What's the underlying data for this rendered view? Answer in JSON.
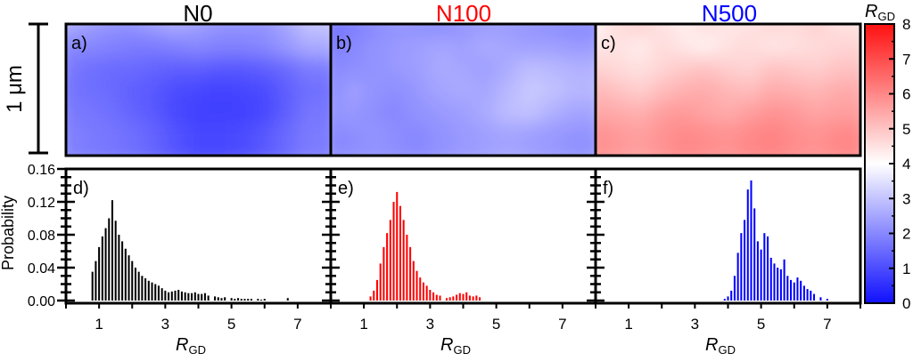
{
  "figure": {
    "scale_label": "1 μm",
    "colorbar_label": "R",
    "colorbar_sub": "GD",
    "colorbar_ticks": [
      "0",
      "1",
      "2",
      "3",
      "4",
      "5",
      "6",
      "7",
      "8"
    ],
    "colors": {
      "low": "#1010ff",
      "mid": "#ffffff",
      "high": "#ff1010"
    }
  },
  "chart_data": [
    {
      "type": "heatmap",
      "id": "map-a",
      "panel": "a)",
      "title": "N0",
      "title_color": "#000000",
      "value_range": [
        0,
        8
      ],
      "values": [
        [
          2.6,
          2.4,
          2.2,
          2.2,
          2.4,
          2.6,
          2.4,
          2.2,
          2.2,
          2.2,
          2.5,
          3.0
        ],
        [
          2.0,
          2.0,
          1.9,
          1.8,
          1.8,
          1.9,
          2.0,
          1.9,
          1.9,
          2.0,
          2.3,
          2.6
        ],
        [
          1.8,
          1.6,
          1.5,
          1.5,
          1.4,
          1.3,
          1.3,
          1.2,
          1.2,
          1.3,
          1.5,
          1.8
        ],
        [
          1.7,
          1.6,
          1.5,
          1.3,
          1.2,
          1.0,
          0.9,
          0.8,
          0.9,
          1.0,
          1.3,
          1.6
        ],
        [
          1.8,
          1.7,
          1.6,
          1.4,
          1.2,
          0.9,
          0.8,
          0.8,
          0.8,
          0.9,
          1.3,
          1.7
        ],
        [
          1.9,
          1.8,
          1.7,
          1.6,
          1.4,
          1.1,
          0.9,
          0.9,
          1.0,
          1.2,
          1.5,
          1.8
        ]
      ]
    },
    {
      "type": "heatmap",
      "id": "map-b",
      "panel": "b)",
      "title": "N100",
      "title_color": "#ff0000",
      "value_range": [
        0,
        8
      ],
      "values": [
        [
          1.6,
          1.8,
          2.0,
          2.2,
          2.1,
          2.0,
          2.2,
          2.3,
          2.3,
          2.2,
          2.1,
          2.0
        ],
        [
          1.8,
          2.0,
          2.2,
          2.3,
          2.4,
          2.5,
          2.4,
          2.6,
          2.5,
          2.4,
          2.4,
          2.3
        ],
        [
          2.0,
          2.1,
          2.2,
          2.3,
          2.4,
          2.6,
          2.5,
          2.4,
          2.6,
          2.9,
          2.8,
          2.7
        ],
        [
          2.1,
          2.4,
          2.2,
          2.1,
          2.3,
          2.5,
          2.6,
          2.5,
          2.8,
          3.1,
          3.0,
          2.8
        ],
        [
          2.2,
          2.3,
          2.1,
          2.0,
          2.2,
          2.3,
          2.4,
          2.6,
          2.9,
          3.0,
          2.7,
          2.5
        ],
        [
          2.0,
          2.1,
          2.2,
          2.1,
          2.0,
          2.2,
          2.3,
          2.4,
          2.5,
          2.4,
          2.3,
          2.2
        ]
      ]
    },
    {
      "type": "heatmap",
      "id": "map-c",
      "panel": "c)",
      "title": "N500",
      "title_color": "#0000ff",
      "value_range": [
        0,
        8
      ],
      "values": [
        [
          4.2,
          4.6,
          4.8,
          4.5,
          4.3,
          4.6,
          4.4,
          4.5,
          4.7,
          4.6,
          4.8,
          4.5
        ],
        [
          4.4,
          4.5,
          4.3,
          4.6,
          4.4,
          4.2,
          4.5,
          4.6,
          4.4,
          4.5,
          4.6,
          4.7
        ],
        [
          4.8,
          4.6,
          4.5,
          4.7,
          4.9,
          5.0,
          4.8,
          4.7,
          5.0,
          4.9,
          4.8,
          5.0
        ],
        [
          5.2,
          5.0,
          4.8,
          5.1,
          5.3,
          5.4,
          5.2,
          5.1,
          5.4,
          5.3,
          5.2,
          5.4
        ],
        [
          5.5,
          5.4,
          5.3,
          5.6,
          5.7,
          5.5,
          5.4,
          5.6,
          5.8,
          5.7,
          5.5,
          5.6
        ],
        [
          5.9,
          5.7,
          5.6,
          5.8,
          6.0,
          5.9,
          5.8,
          6.0,
          6.1,
          5.9,
          5.8,
          6.0
        ]
      ]
    },
    {
      "type": "bar",
      "id": "hist-d",
      "panel": "d)",
      "color": "#000000",
      "xlabel": "R",
      "xlabel_sub": "GD",
      "ylabel": "Probability",
      "xlim": [
        0,
        8
      ],
      "ylim": [
        0,
        0.16
      ],
      "xticks": [
        "1",
        "3",
        "5",
        "7"
      ],
      "yticks": [
        "0.00",
        "0.04",
        "0.08",
        "0.12",
        "0.16"
      ],
      "x": [
        0.8,
        0.9,
        1.0,
        1.1,
        1.2,
        1.3,
        1.4,
        1.5,
        1.6,
        1.7,
        1.8,
        1.9,
        2.0,
        2.1,
        2.2,
        2.3,
        2.4,
        2.5,
        2.6,
        2.7,
        2.8,
        2.9,
        3.0,
        3.1,
        3.2,
        3.3,
        3.4,
        3.5,
        3.6,
        3.7,
        3.8,
        3.9,
        4.0,
        4.1,
        4.2,
        4.3,
        4.5,
        4.6,
        4.7,
        4.8,
        5.0,
        5.1,
        5.2,
        5.3,
        5.4,
        5.5,
        5.6,
        5.8,
        5.9,
        6.0,
        6.7
      ],
      "values": [
        0.035,
        0.048,
        0.065,
        0.078,
        0.088,
        0.1,
        0.122,
        0.097,
        0.08,
        0.072,
        0.063,
        0.055,
        0.048,
        0.04,
        0.035,
        0.03,
        0.027,
        0.024,
        0.022,
        0.02,
        0.018,
        0.015,
        0.012,
        0.01,
        0.011,
        0.012,
        0.013,
        0.011,
        0.01,
        0.009,
        0.009,
        0.01,
        0.008,
        0.008,
        0.009,
        0.006,
        0.005,
        0.004,
        0.003,
        0.004,
        0.003,
        0.002,
        0.003,
        0.002,
        0.002,
        0.002,
        0.002,
        0.002,
        0.001,
        0.002,
        0.003
      ]
    },
    {
      "type": "bar",
      "id": "hist-e",
      "panel": "e)",
      "color": "#ff0000",
      "xlabel": "R",
      "xlabel_sub": "GD",
      "xlim": [
        0,
        8
      ],
      "ylim": [
        0,
        0.16
      ],
      "xticks": [
        "1",
        "3",
        "5",
        "7"
      ],
      "x": [
        1.2,
        1.3,
        1.4,
        1.5,
        1.6,
        1.7,
        1.8,
        1.9,
        2.0,
        2.1,
        2.2,
        2.3,
        2.4,
        2.5,
        2.6,
        2.7,
        2.8,
        2.9,
        3.0,
        3.1,
        3.2,
        3.3,
        3.5,
        3.6,
        3.7,
        3.8,
        3.9,
        4.0,
        4.1,
        4.2,
        4.3,
        4.4,
        4.5
      ],
      "values": [
        0.005,
        0.012,
        0.025,
        0.045,
        0.065,
        0.082,
        0.098,
        0.12,
        0.132,
        0.115,
        0.098,
        0.08,
        0.065,
        0.048,
        0.036,
        0.028,
        0.022,
        0.018,
        0.013,
        0.01,
        0.007,
        0.006,
        0.003,
        0.004,
        0.005,
        0.007,
        0.009,
        0.008,
        0.01,
        0.006,
        0.005,
        0.006,
        0.004
      ]
    },
    {
      "type": "bar",
      "id": "hist-f",
      "panel": "f)",
      "color": "#0000ff",
      "xlabel": "R",
      "xlabel_sub": "GD",
      "xlim": [
        0,
        8
      ],
      "ylim": [
        0,
        0.16
      ],
      "xticks": [
        "1",
        "3",
        "5",
        "7"
      ],
      "x": [
        3.9,
        4.0,
        4.1,
        4.2,
        4.3,
        4.4,
        4.5,
        4.6,
        4.7,
        4.8,
        4.9,
        5.0,
        5.1,
        5.2,
        5.3,
        5.4,
        5.5,
        5.6,
        5.7,
        5.8,
        5.9,
        6.0,
        6.1,
        6.2,
        6.3,
        6.4,
        6.5,
        6.6,
        6.8,
        7.0
      ],
      "values": [
        0.002,
        0.005,
        0.012,
        0.03,
        0.058,
        0.082,
        0.098,
        0.135,
        0.146,
        0.112,
        0.072,
        0.062,
        0.082,
        0.078,
        0.052,
        0.045,
        0.04,
        0.038,
        0.05,
        0.03,
        0.025,
        0.022,
        0.028,
        0.024,
        0.018,
        0.014,
        0.012,
        0.008,
        0.004,
        0.002
      ]
    }
  ]
}
